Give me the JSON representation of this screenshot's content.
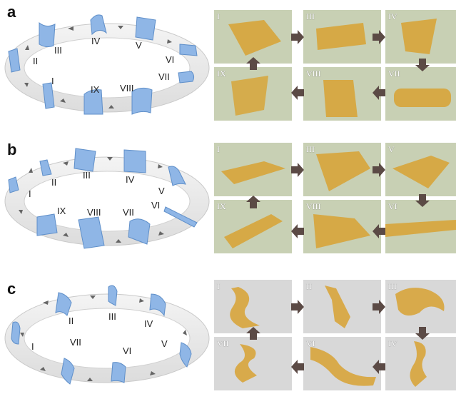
{
  "figure": {
    "panels": [
      {
        "letter": "a",
        "ring_labels": [
          "I",
          "II",
          "III",
          "IV",
          "V",
          "VI",
          "VII",
          "VIII",
          "IX"
        ],
        "photo_labels": [
          "I",
          "III",
          "IV",
          "IX",
          "VIII",
          "VII"
        ]
      },
      {
        "letter": "b",
        "ring_labels": [
          "I",
          "II",
          "III",
          "IV",
          "V",
          "VI",
          "VII",
          "VIII",
          "IX"
        ],
        "photo_labels": [
          "I",
          "III",
          "V",
          "IX",
          "VIII",
          "VI"
        ]
      },
      {
        "letter": "c",
        "ring_labels": [
          "I",
          "II",
          "III",
          "IV",
          "V",
          "VI",
          "VII"
        ],
        "photo_labels": [
          "I",
          "II",
          "III",
          "VII",
          "VI",
          "IV"
        ]
      }
    ],
    "colors": {
      "sheet": "#8fb6e6",
      "sheet_dark": "#5f8fc9",
      "ring": "#e8e8e8",
      "photo_bg": "#c9d2b8",
      "film": "#d8a232",
      "arrow": "#5b4a45"
    }
  }
}
